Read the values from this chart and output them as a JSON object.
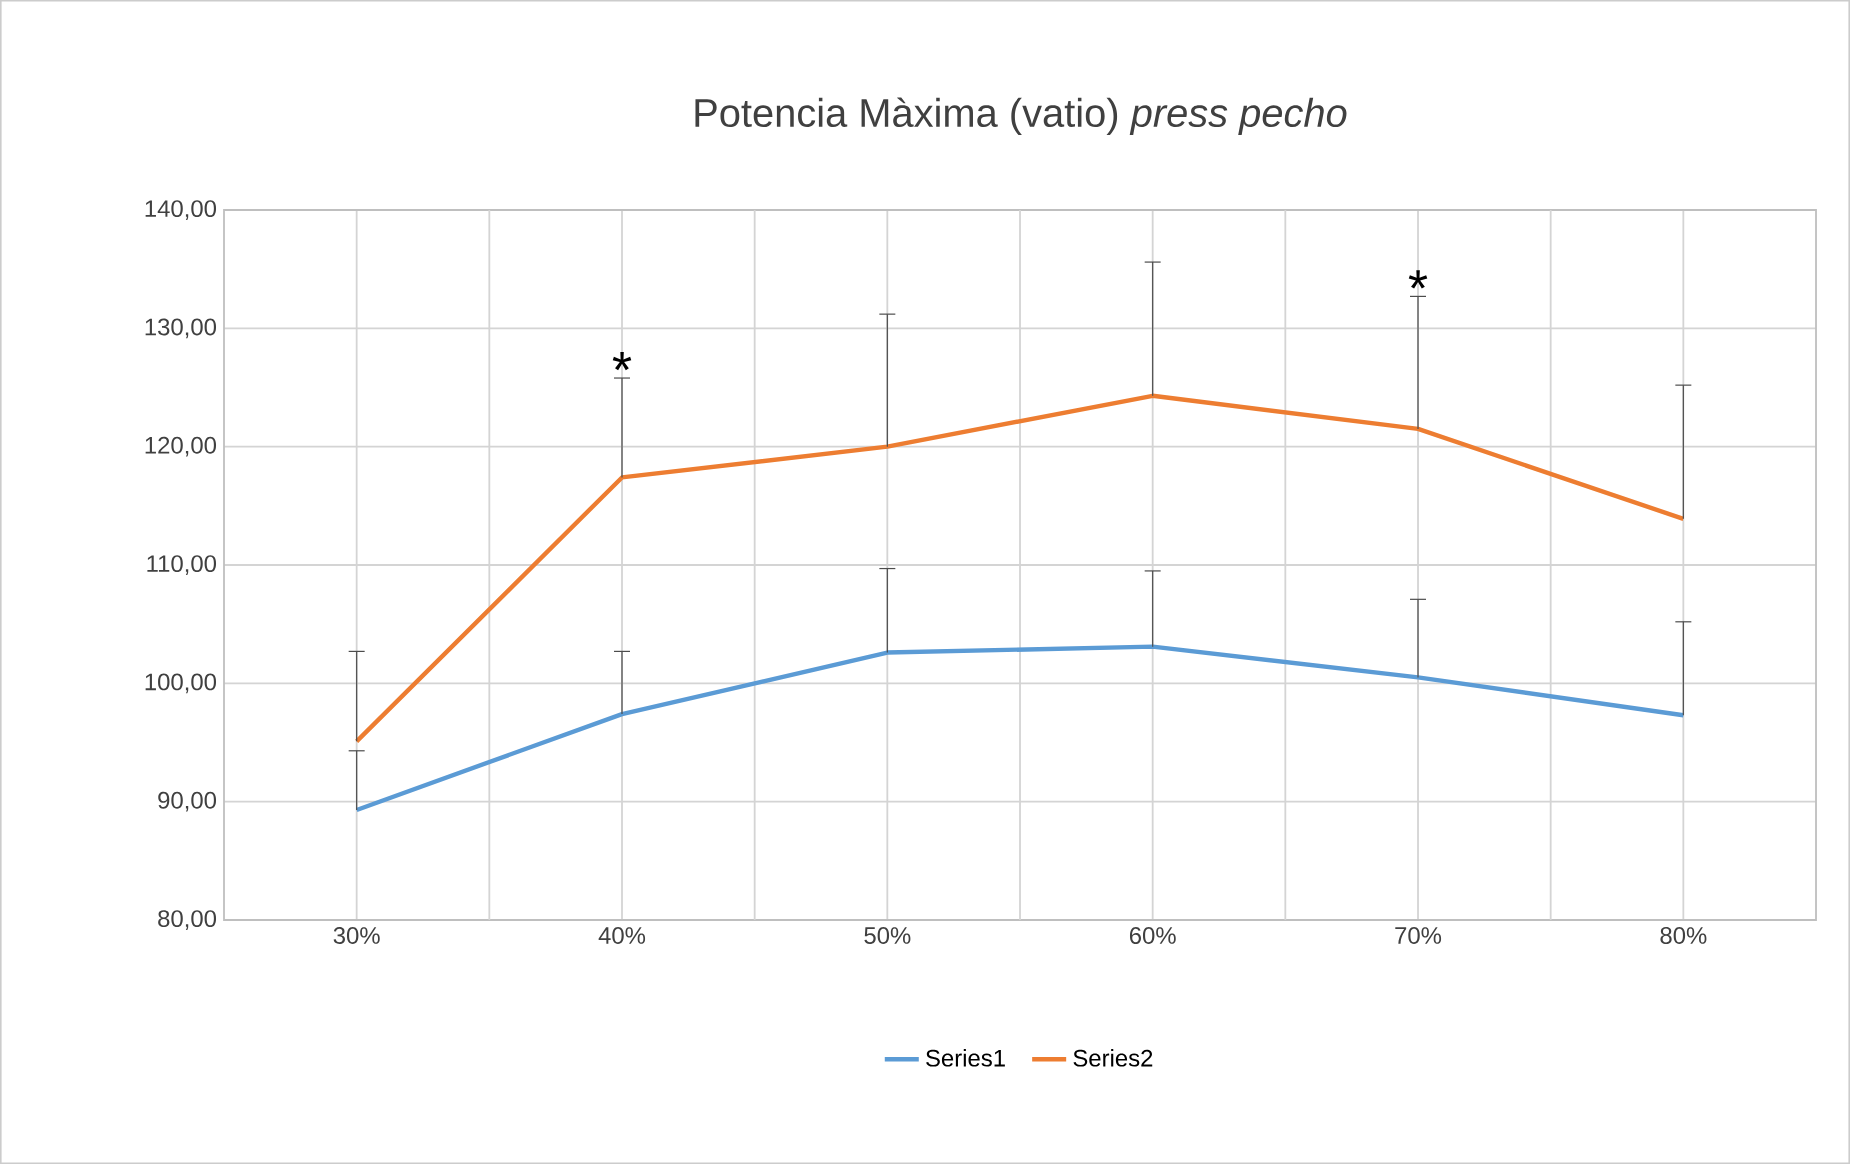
{
  "chart_data": {
    "type": "line",
    "title": "Potencia Màxima (vatio) *press pecho*",
    "categories": [
      "30%",
      "40%",
      "50%",
      "60%",
      "70%",
      "80%"
    ],
    "series": [
      {
        "name": "Series1",
        "color": "#5b9bd5",
        "values": [
          89.3,
          97.4,
          102.6,
          103.1,
          100.5,
          97.3
        ],
        "errors": [
          [
            89.3,
            94.3
          ],
          [
            97.4,
            102.7
          ],
          [
            102.6,
            109.7
          ],
          [
            103.1,
            109.5
          ],
          [
            100.5,
            107.1
          ],
          [
            97.3,
            105.2
          ]
        ]
      },
      {
        "name": "Series2",
        "color": "#ed7d31",
        "values": [
          95.1,
          117.4,
          120.0,
          124.3,
          121.5,
          113.9
        ],
        "errors": [
          [
            95.1,
            102.7
          ],
          [
            117.4,
            125.8
          ],
          [
            120.0,
            131.2
          ],
          [
            124.3,
            135.6
          ],
          [
            121.5,
            132.7
          ],
          [
            113.9,
            125.2
          ]
        ]
      }
    ],
    "ylim": [
      80,
      140
    ],
    "yticks": [
      {
        "value": 80,
        "label": "80,00"
      },
      {
        "value": 90,
        "label": "90,00"
      },
      {
        "value": 100,
        "label": "100,00"
      },
      {
        "value": 110,
        "label": "110,00"
      },
      {
        "value": 120,
        "label": "120,00"
      },
      {
        "value": 130,
        "label": "130,00"
      },
      {
        "value": 140,
        "label": "140,00"
      }
    ],
    "grid": true,
    "legend": "bottom",
    "marker": "none",
    "line_style": "solid",
    "annotations": [
      {
        "text": "*",
        "x": "40%",
        "y": 117.4
      },
      {
        "text": "*",
        "x": "70%",
        "y": 121.5
      }
    ]
  }
}
